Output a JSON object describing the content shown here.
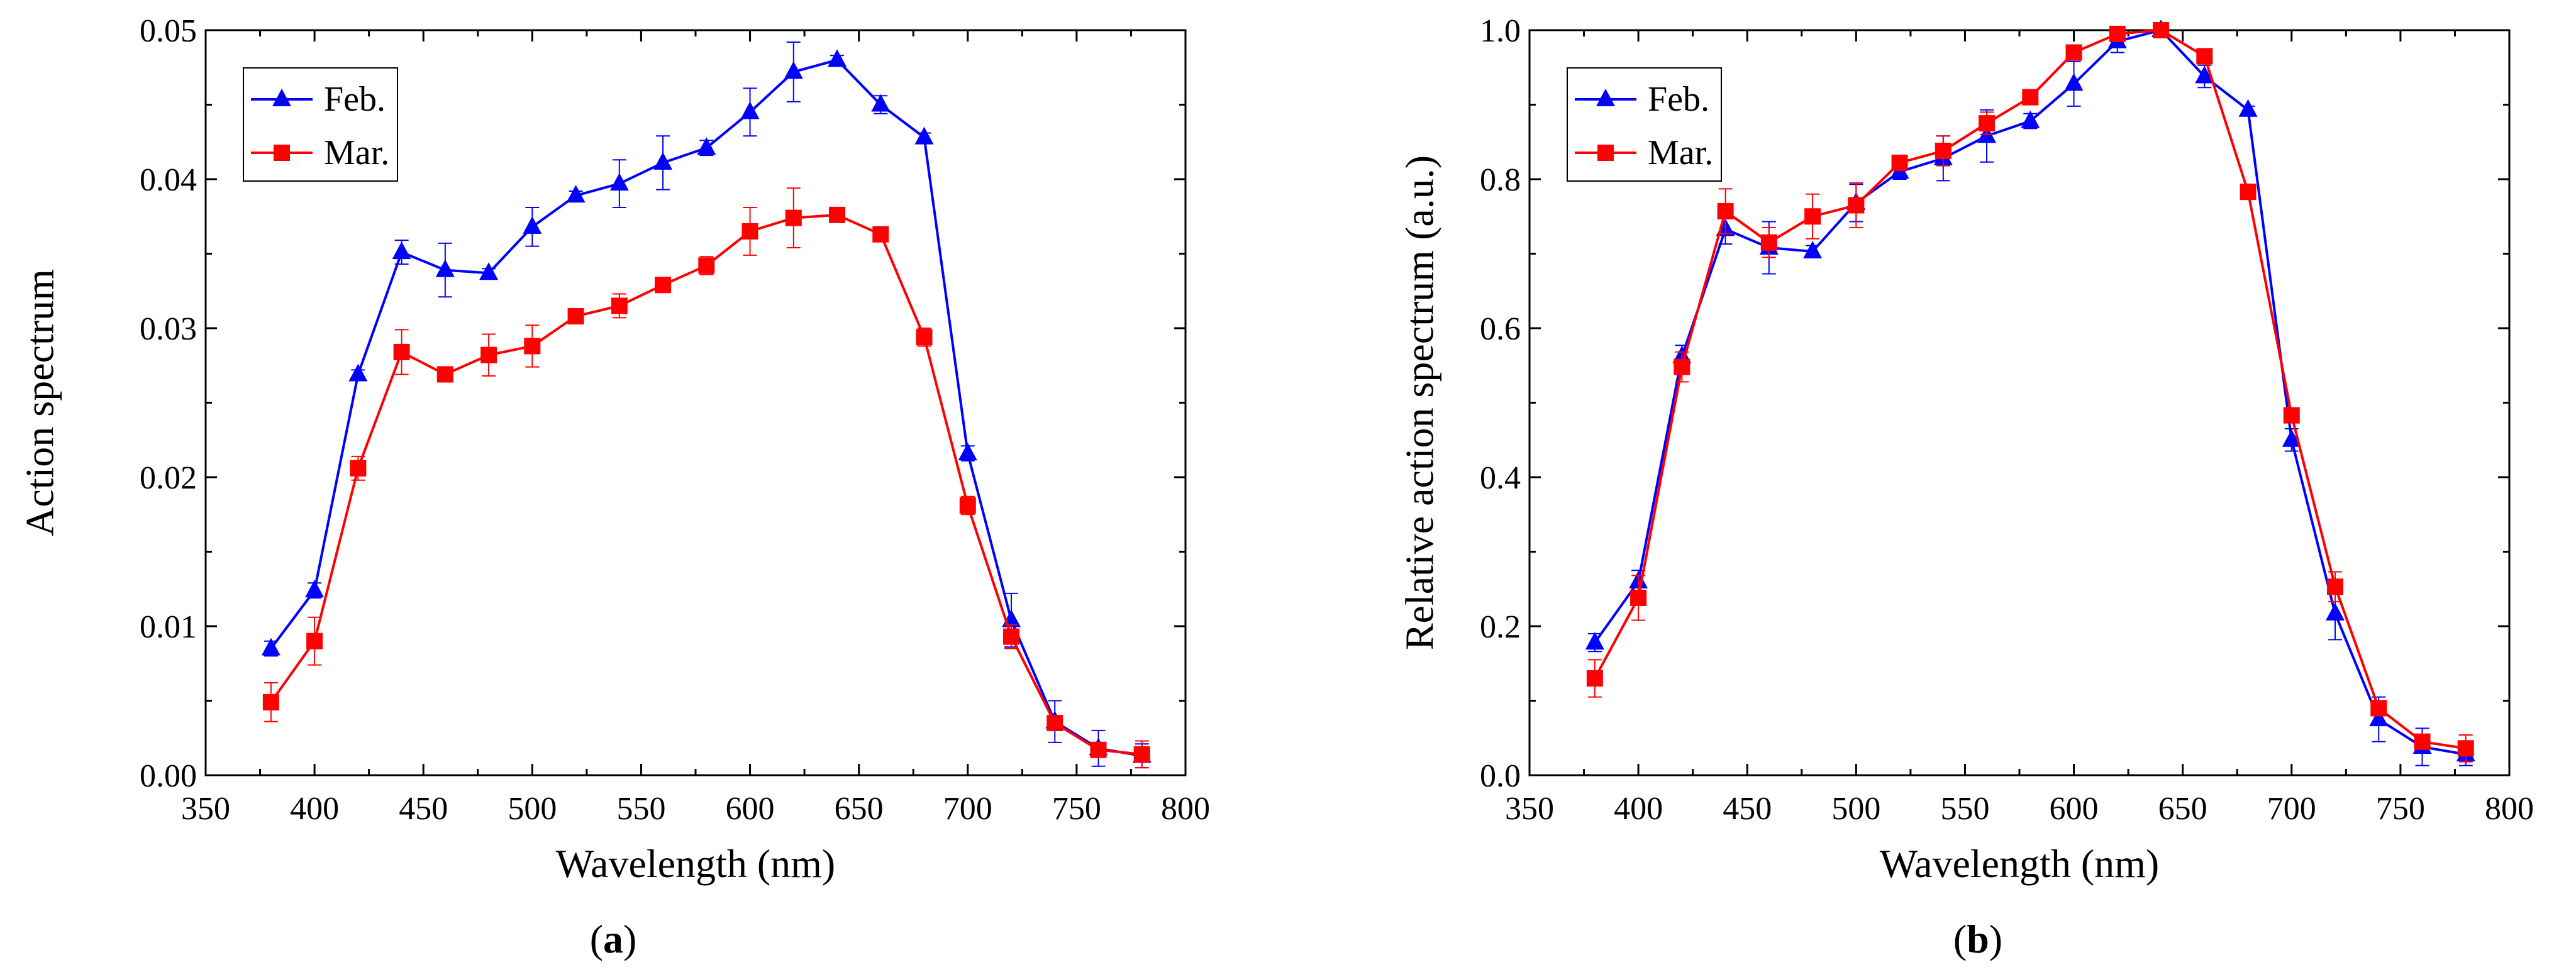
{
  "colors": {
    "feb": "#0000ff",
    "mar": "#ff0000",
    "axis": "#000000"
  },
  "chart_data": [
    {
      "type": "line",
      "panel_label": "a",
      "xlabel": "Wavelength (nm)",
      "ylabel": "Action spectrum",
      "xlim": [
        350,
        800
      ],
      "ylim": [
        0,
        0.05
      ],
      "xticks": [
        "350",
        "400",
        "450",
        "500",
        "550",
        "600",
        "650",
        "700",
        "750",
        "800"
      ],
      "yticks": [
        "0.00",
        "0.01",
        "0.02",
        "0.03",
        "0.04",
        "0.05"
      ],
      "legend_position": "top-left",
      "x": [
        380,
        400,
        420,
        440,
        460,
        480,
        500,
        520,
        540,
        560,
        580,
        600,
        620,
        640,
        660,
        680,
        700,
        720,
        740,
        760,
        780
      ],
      "series": [
        {
          "name": "Feb.",
          "marker": "triangle",
          "values": [
            0.0085,
            0.0124,
            0.0269,
            0.0351,
            0.0339,
            0.0337,
            0.0368,
            0.0389,
            0.0397,
            0.0411,
            0.0421,
            0.0445,
            0.0472,
            0.048,
            0.045,
            0.0428,
            0.0216,
            0.0104,
            0.0036,
            0.0018,
            0.0013
          ],
          "errors": [
            0.0005,
            0.0005,
            0.0003,
            0.0008,
            0.0018,
            0.0003,
            0.0013,
            0.0003,
            0.0016,
            0.0018,
            0.0005,
            0.0016,
            0.002,
            0.0003,
            0.0006,
            0.0003,
            0.0005,
            0.0018,
            0.0014,
            0.0012,
            0.0008
          ]
        },
        {
          "name": "Mar.",
          "marker": "square",
          "values": [
            0.0049,
            0.009,
            0.0206,
            0.0284,
            0.0269,
            0.0282,
            0.0288,
            0.0308,
            0.0315,
            0.0329,
            0.0342,
            0.0365,
            0.0374,
            0.0376,
            0.0363,
            0.0294,
            0.0181,
            0.0093,
            0.0035,
            0.0017,
            0.0014
          ],
          "errors": [
            0.0013,
            0.0016,
            0.0008,
            0.0015,
            0.0003,
            0.0014,
            0.0014,
            0.0005,
            0.0008,
            0.0003,
            0.0006,
            0.0016,
            0.002,
            0.0003,
            0.0003,
            0.0006,
            0.0006,
            0.0008,
            0.0005,
            0.0003,
            0.0009
          ]
        }
      ]
    },
    {
      "type": "line",
      "panel_label": "b",
      "xlabel": "Wavelength (nm)",
      "ylabel": "Relative action spectrum (a.u.)",
      "xlim": [
        350,
        800
      ],
      "ylim": [
        0,
        1.0
      ],
      "xticks": [
        "350",
        "400",
        "450",
        "500",
        "550",
        "600",
        "650",
        "700",
        "750",
        "800"
      ],
      "yticks": [
        "0.0",
        "0.2",
        "0.4",
        "0.6",
        "0.8",
        "1.0"
      ],
      "legend_position": "top-left",
      "x": [
        380,
        400,
        420,
        440,
        460,
        480,
        500,
        520,
        540,
        560,
        580,
        600,
        620,
        640,
        660,
        680,
        700,
        720,
        740,
        760,
        780
      ],
      "series": [
        {
          "name": "Feb.",
          "marker": "triangle",
          "values": [
            0.178,
            0.26,
            0.562,
            0.733,
            0.708,
            0.703,
            0.768,
            0.81,
            0.828,
            0.858,
            0.878,
            0.928,
            0.985,
            1.0,
            0.938,
            0.893,
            0.45,
            0.217,
            0.075,
            0.038,
            0.028
          ],
          "errors": [
            0.012,
            0.015,
            0.015,
            0.02,
            0.035,
            0.008,
            0.025,
            0.01,
            0.03,
            0.035,
            0.01,
            0.03,
            0.015,
            0.005,
            0.015,
            0.005,
            0.015,
            0.035,
            0.03,
            0.025,
            0.015
          ]
        },
        {
          "name": "Mar.",
          "marker": "square",
          "values": [
            0.13,
            0.238,
            0.548,
            0.757,
            0.715,
            0.75,
            0.765,
            0.822,
            0.838,
            0.875,
            0.91,
            0.97,
            0.995,
            1.0,
            0.965,
            0.783,
            0.483,
            0.253,
            0.09,
            0.045,
            0.036
          ],
          "errors": [
            0.025,
            0.03,
            0.02,
            0.03,
            0.02,
            0.03,
            0.03,
            0.01,
            0.02,
            0.015,
            0.01,
            0.01,
            0.01,
            0.005,
            0.005,
            0.01,
            0.01,
            0.02,
            0.01,
            0.01,
            0.018
          ]
        }
      ]
    }
  ]
}
